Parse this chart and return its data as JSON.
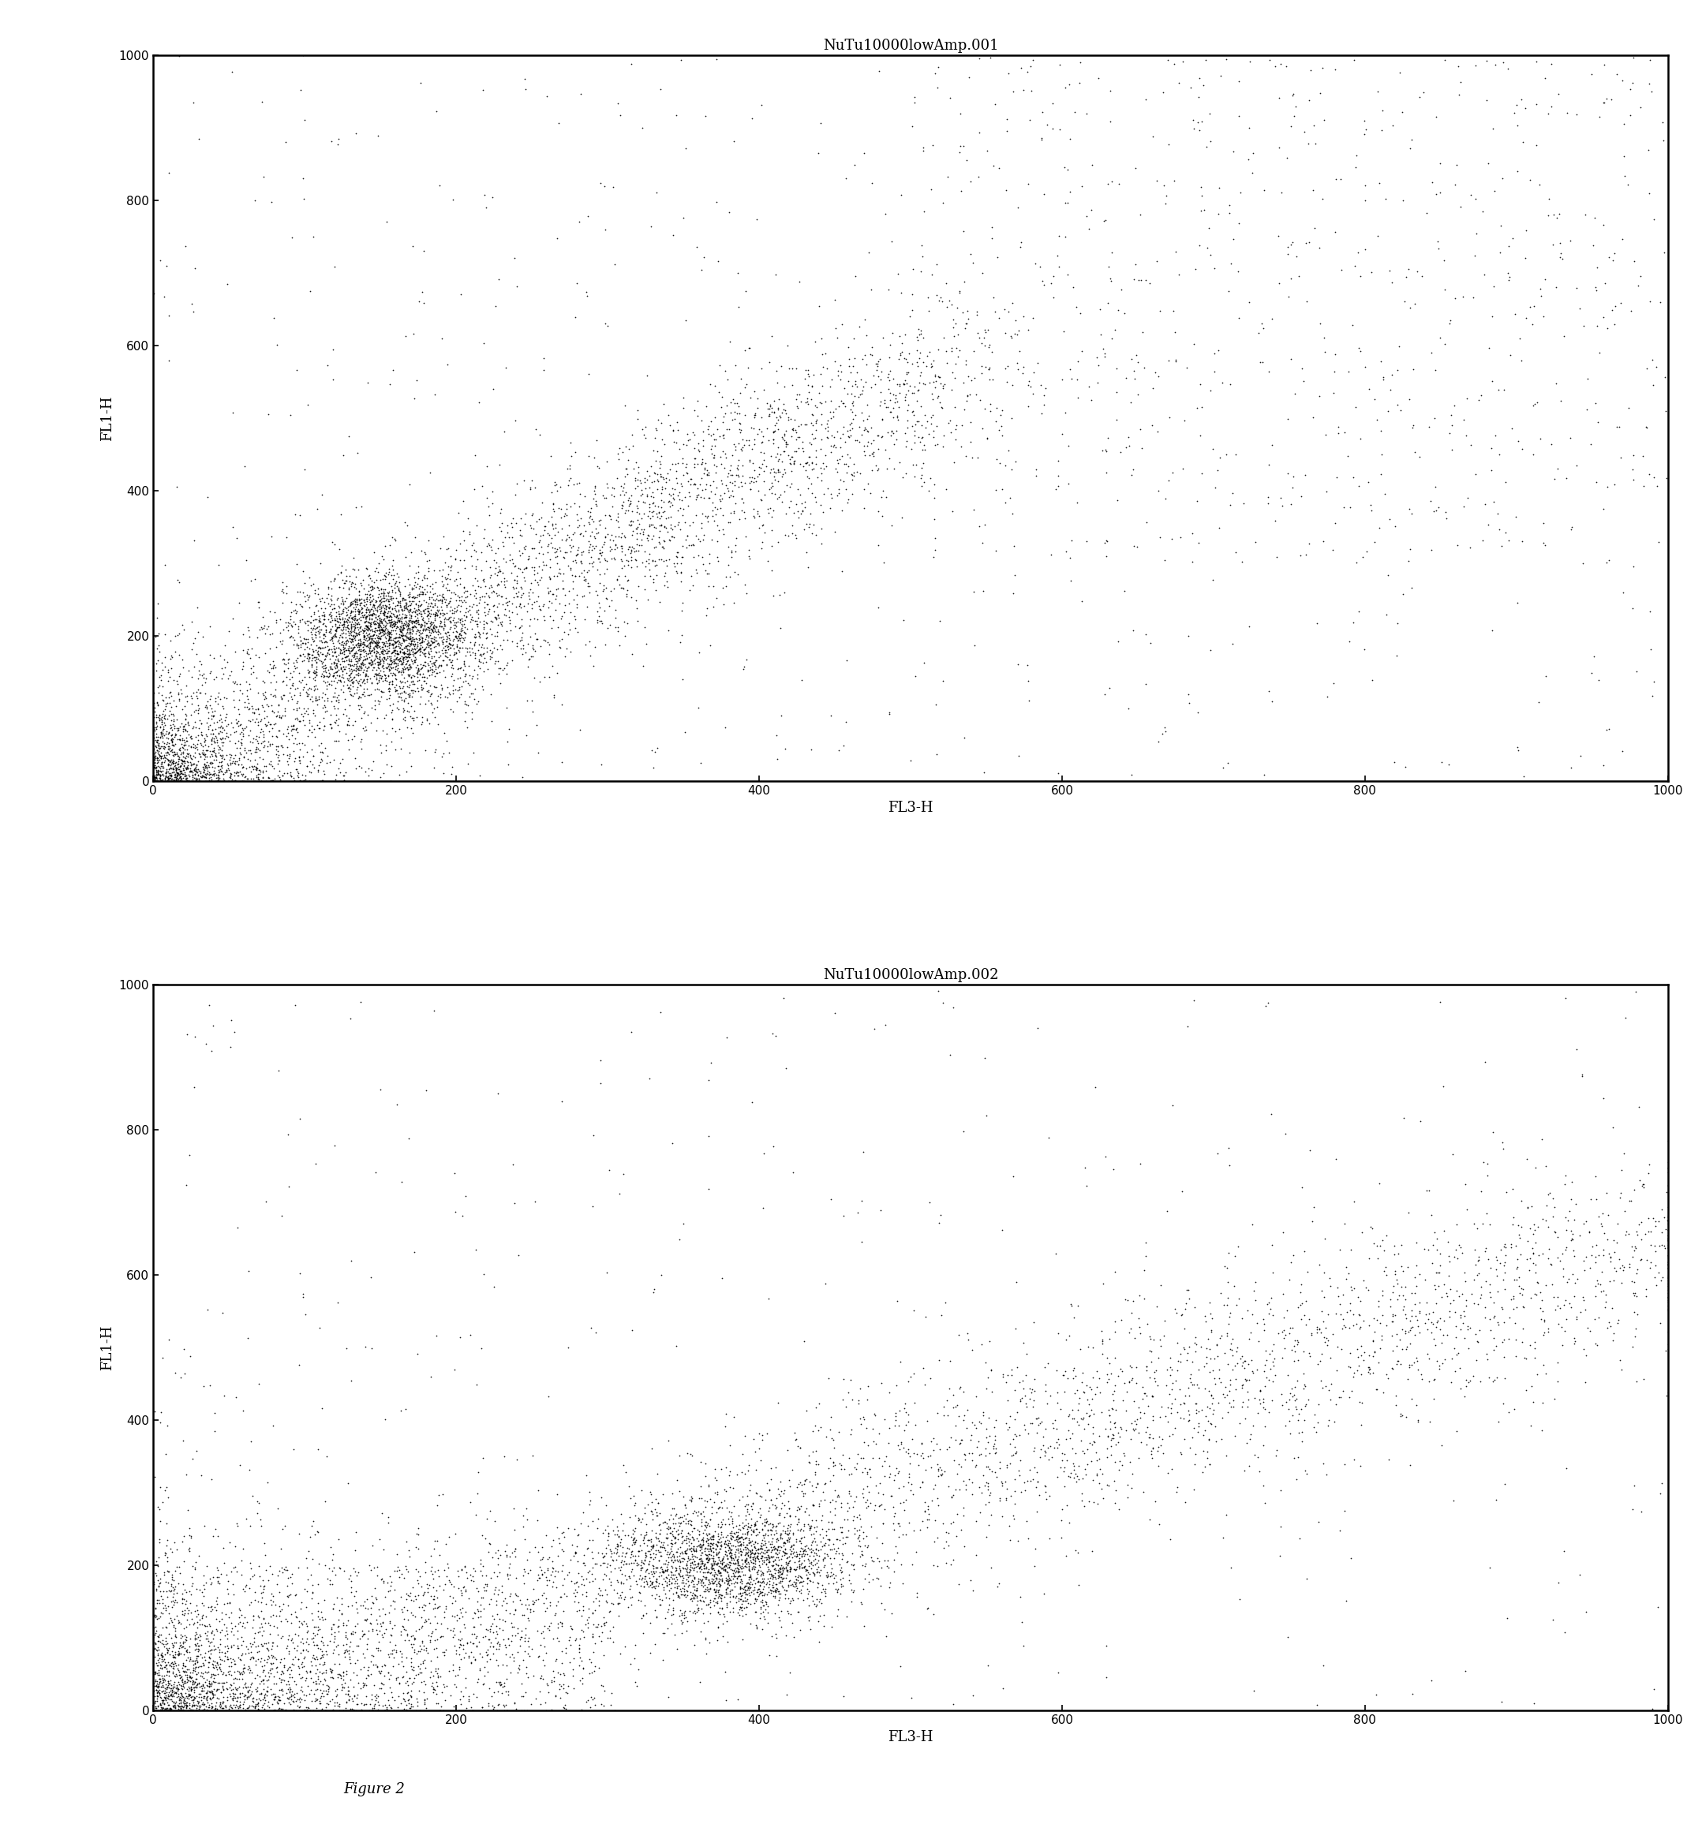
{
  "title1": "NuTu10000lowAmp.001",
  "title2": "NuTu10000lowAmp.002",
  "xlabel": "FL3-H",
  "ylabel": "FL1-H",
  "xlim": [
    0,
    1000
  ],
  "ylim": [
    0,
    1000
  ],
  "xticks": [
    0,
    200,
    400,
    600,
    800,
    1000
  ],
  "yticks": [
    0,
    200,
    400,
    600,
    800,
    1000
  ],
  "figure_caption": "Figure 2",
  "bg_color": "#ffffff",
  "dot_color": "#000000",
  "dot_size": 1.5,
  "seed1": 42,
  "seed2": 99,
  "n_points1": 8000,
  "n_points2": 8000
}
